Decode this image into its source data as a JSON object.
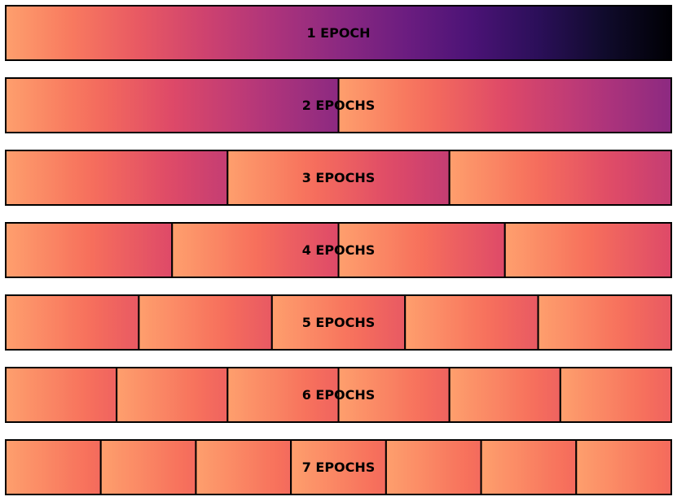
{
  "rows": [
    {
      "label": "1 EPOCH",
      "segments": 1
    },
    {
      "label": "2 EPOCHS",
      "segments": 2
    },
    {
      "label": "3 EPOCHS",
      "segments": 3
    },
    {
      "label": "4 EPOCHS",
      "segments": 4
    },
    {
      "label": "5 EPOCHS",
      "segments": 5
    },
    {
      "label": "6 EPOCHS",
      "segments": 6
    },
    {
      "label": "7 EPOCHS",
      "segments": 7
    }
  ]
}
